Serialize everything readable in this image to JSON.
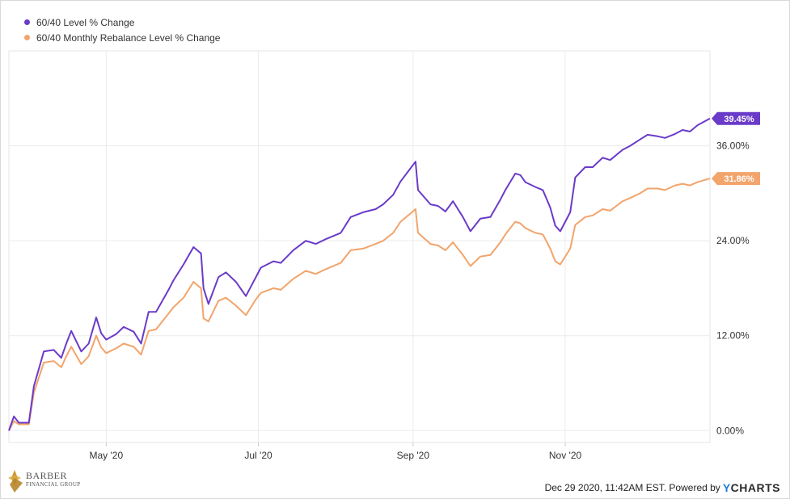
{
  "legend": [
    {
      "label": "60/40 Level % Change",
      "color": "#6a3bc8"
    },
    {
      "label": "60/40 Monthly Rebalance Level % Change",
      "color": "#f2a46b"
    }
  ],
  "footer": {
    "text": "Dec 29 2020, 11:42AM EST. Powered by",
    "brand_y": "Y",
    "brand_rest": "CHARTS"
  },
  "logo": {
    "name": "BARBER",
    "sub": "FINANCIAL GROUP"
  },
  "chart_data": {
    "type": "line",
    "x_tick_labels": [
      "May '20",
      "Jul '20",
      "Sep '20",
      "Nov '20"
    ],
    "x_tick_dates": [
      "2020-05-01",
      "2020-07-01",
      "2020-09-01",
      "2020-11-01"
    ],
    "x_range": [
      "2020-03-23",
      "2020-12-29"
    ],
    "ylim": [
      -1.5,
      48
    ],
    "y_ticks": [
      0,
      12,
      24,
      36
    ],
    "y_tick_labels": [
      "0.00%",
      "12.00%",
      "24.00%",
      "36.00%"
    ],
    "grid": true,
    "legend_position": "top-left",
    "end_labels": [
      "39.45%",
      "31.86%"
    ],
    "series": [
      {
        "name": "60/40 Level % Change",
        "color": "#6a3bc8",
        "points": [
          [
            "2020-03-23",
            0.0
          ],
          [
            "2020-03-25",
            1.8
          ],
          [
            "2020-03-27",
            1.0
          ],
          [
            "2020-03-31",
            1.0
          ],
          [
            "2020-04-02",
            5.6
          ],
          [
            "2020-04-06",
            10.0
          ],
          [
            "2020-04-10",
            10.2
          ],
          [
            "2020-04-13",
            9.2
          ],
          [
            "2020-04-15",
            11.0
          ],
          [
            "2020-04-17",
            12.6
          ],
          [
            "2020-04-21",
            10.0
          ],
          [
            "2020-04-24",
            11.0
          ],
          [
            "2020-04-27",
            14.3
          ],
          [
            "2020-04-29",
            12.3
          ],
          [
            "2020-05-01",
            11.5
          ],
          [
            "2020-05-05",
            12.2
          ],
          [
            "2020-05-08",
            13.1
          ],
          [
            "2020-05-12",
            12.5
          ],
          [
            "2020-05-15",
            11.0
          ],
          [
            "2020-05-18",
            15.0
          ],
          [
            "2020-05-21",
            15.0
          ],
          [
            "2020-05-26",
            17.8
          ],
          [
            "2020-05-28",
            19.0
          ],
          [
            "2020-06-01",
            21.0
          ],
          [
            "2020-06-05",
            23.2
          ],
          [
            "2020-06-08",
            22.4
          ],
          [
            "2020-06-09",
            18.0
          ],
          [
            "2020-06-11",
            16.0
          ],
          [
            "2020-06-15",
            19.4
          ],
          [
            "2020-06-18",
            20.0
          ],
          [
            "2020-06-22",
            18.8
          ],
          [
            "2020-06-26",
            17.0
          ],
          [
            "2020-06-30",
            19.4
          ],
          [
            "2020-07-02",
            20.6
          ],
          [
            "2020-07-07",
            21.4
          ],
          [
            "2020-07-10",
            21.2
          ],
          [
            "2020-07-15",
            22.8
          ],
          [
            "2020-07-20",
            24.0
          ],
          [
            "2020-07-24",
            23.6
          ],
          [
            "2020-07-28",
            24.2
          ],
          [
            "2020-08-03",
            25.0
          ],
          [
            "2020-08-07",
            27.0
          ],
          [
            "2020-08-12",
            27.6
          ],
          [
            "2020-08-17",
            28.0
          ],
          [
            "2020-08-20",
            28.6
          ],
          [
            "2020-08-24",
            29.8
          ],
          [
            "2020-08-27",
            31.5
          ],
          [
            "2020-09-02",
            34.0
          ],
          [
            "2020-09-03",
            30.4
          ],
          [
            "2020-09-08",
            28.6
          ],
          [
            "2020-09-11",
            28.4
          ],
          [
            "2020-09-14",
            27.7
          ],
          [
            "2020-09-17",
            29.0
          ],
          [
            "2020-09-21",
            27.0
          ],
          [
            "2020-09-24",
            25.2
          ],
          [
            "2020-09-28",
            26.8
          ],
          [
            "2020-10-02",
            27.0
          ],
          [
            "2020-10-06",
            29.2
          ],
          [
            "2020-10-08",
            30.4
          ],
          [
            "2020-10-12",
            32.5
          ],
          [
            "2020-10-14",
            32.3
          ],
          [
            "2020-10-16",
            31.4
          ],
          [
            "2020-10-20",
            30.8
          ],
          [
            "2020-10-23",
            30.4
          ],
          [
            "2020-10-26",
            28.2
          ],
          [
            "2020-10-28",
            25.9
          ],
          [
            "2020-10-30",
            25.2
          ],
          [
            "2020-11-03",
            27.6
          ],
          [
            "2020-11-05",
            32.0
          ],
          [
            "2020-11-09",
            33.3
          ],
          [
            "2020-11-12",
            33.3
          ],
          [
            "2020-11-16",
            34.5
          ],
          [
            "2020-11-19",
            34.2
          ],
          [
            "2020-11-24",
            35.5
          ],
          [
            "2020-11-27",
            36.0
          ],
          [
            "2020-12-01",
            36.8
          ],
          [
            "2020-12-04",
            37.4
          ],
          [
            "2020-12-08",
            37.2
          ],
          [
            "2020-12-11",
            37.0
          ],
          [
            "2020-12-15",
            37.5
          ],
          [
            "2020-12-18",
            38.0
          ],
          [
            "2020-12-21",
            37.8
          ],
          [
            "2020-12-24",
            38.6
          ],
          [
            "2020-12-29",
            39.45
          ]
        ]
      },
      {
        "name": "60/40 Monthly Rebalance Level % Change",
        "color": "#f2a46b",
        "points": [
          [
            "2020-03-23",
            0.0
          ],
          [
            "2020-03-25",
            1.2
          ],
          [
            "2020-03-27",
            0.8
          ],
          [
            "2020-03-31",
            0.8
          ],
          [
            "2020-04-02",
            4.8
          ],
          [
            "2020-04-06",
            8.6
          ],
          [
            "2020-04-10",
            8.8
          ],
          [
            "2020-04-13",
            8.0
          ],
          [
            "2020-04-15",
            9.4
          ],
          [
            "2020-04-17",
            10.6
          ],
          [
            "2020-04-21",
            8.4
          ],
          [
            "2020-04-24",
            9.4
          ],
          [
            "2020-04-27",
            12.0
          ],
          [
            "2020-04-29",
            10.5
          ],
          [
            "2020-05-01",
            9.8
          ],
          [
            "2020-05-05",
            10.4
          ],
          [
            "2020-05-08",
            11.0
          ],
          [
            "2020-05-12",
            10.6
          ],
          [
            "2020-05-15",
            9.6
          ],
          [
            "2020-05-18",
            12.6
          ],
          [
            "2020-05-21",
            12.8
          ],
          [
            "2020-05-26",
            14.8
          ],
          [
            "2020-05-28",
            15.6
          ],
          [
            "2020-06-01",
            16.8
          ],
          [
            "2020-06-05",
            18.8
          ],
          [
            "2020-06-08",
            18.0
          ],
          [
            "2020-06-09",
            14.2
          ],
          [
            "2020-06-11",
            13.8
          ],
          [
            "2020-06-15",
            16.4
          ],
          [
            "2020-06-18",
            16.8
          ],
          [
            "2020-06-22",
            15.8
          ],
          [
            "2020-06-26",
            14.6
          ],
          [
            "2020-06-30",
            16.6
          ],
          [
            "2020-07-02",
            17.4
          ],
          [
            "2020-07-07",
            18.0
          ],
          [
            "2020-07-10",
            17.8
          ],
          [
            "2020-07-15",
            19.2
          ],
          [
            "2020-07-20",
            20.2
          ],
          [
            "2020-07-24",
            19.8
          ],
          [
            "2020-07-28",
            20.4
          ],
          [
            "2020-08-03",
            21.2
          ],
          [
            "2020-08-07",
            22.8
          ],
          [
            "2020-08-12",
            23.0
          ],
          [
            "2020-08-17",
            23.6
          ],
          [
            "2020-08-20",
            24.0
          ],
          [
            "2020-08-24",
            25.0
          ],
          [
            "2020-08-27",
            26.4
          ],
          [
            "2020-09-02",
            28.0
          ],
          [
            "2020-09-03",
            25.0
          ],
          [
            "2020-09-08",
            23.6
          ],
          [
            "2020-09-11",
            23.4
          ],
          [
            "2020-09-14",
            22.8
          ],
          [
            "2020-09-17",
            23.8
          ],
          [
            "2020-09-21",
            22.2
          ],
          [
            "2020-09-24",
            20.8
          ],
          [
            "2020-09-28",
            22.0
          ],
          [
            "2020-10-02",
            22.2
          ],
          [
            "2020-10-06",
            23.8
          ],
          [
            "2020-10-08",
            24.8
          ],
          [
            "2020-10-12",
            26.4
          ],
          [
            "2020-10-14",
            26.2
          ],
          [
            "2020-10-16",
            25.6
          ],
          [
            "2020-10-20",
            25.0
          ],
          [
            "2020-10-23",
            24.8
          ],
          [
            "2020-10-26",
            23.0
          ],
          [
            "2020-10-28",
            21.4
          ],
          [
            "2020-10-30",
            21.0
          ],
          [
            "2020-11-03",
            23.0
          ],
          [
            "2020-11-05",
            26.0
          ],
          [
            "2020-11-09",
            27.0
          ],
          [
            "2020-11-12",
            27.2
          ],
          [
            "2020-11-16",
            28.0
          ],
          [
            "2020-11-19",
            27.8
          ],
          [
            "2020-11-24",
            29.0
          ],
          [
            "2020-11-27",
            29.4
          ],
          [
            "2020-12-01",
            30.0
          ],
          [
            "2020-12-04",
            30.6
          ],
          [
            "2020-12-08",
            30.6
          ],
          [
            "2020-12-11",
            30.4
          ],
          [
            "2020-12-15",
            31.0
          ],
          [
            "2020-12-18",
            31.2
          ],
          [
            "2020-12-21",
            31.0
          ],
          [
            "2020-12-24",
            31.4
          ],
          [
            "2020-12-29",
            31.86
          ]
        ]
      }
    ]
  }
}
